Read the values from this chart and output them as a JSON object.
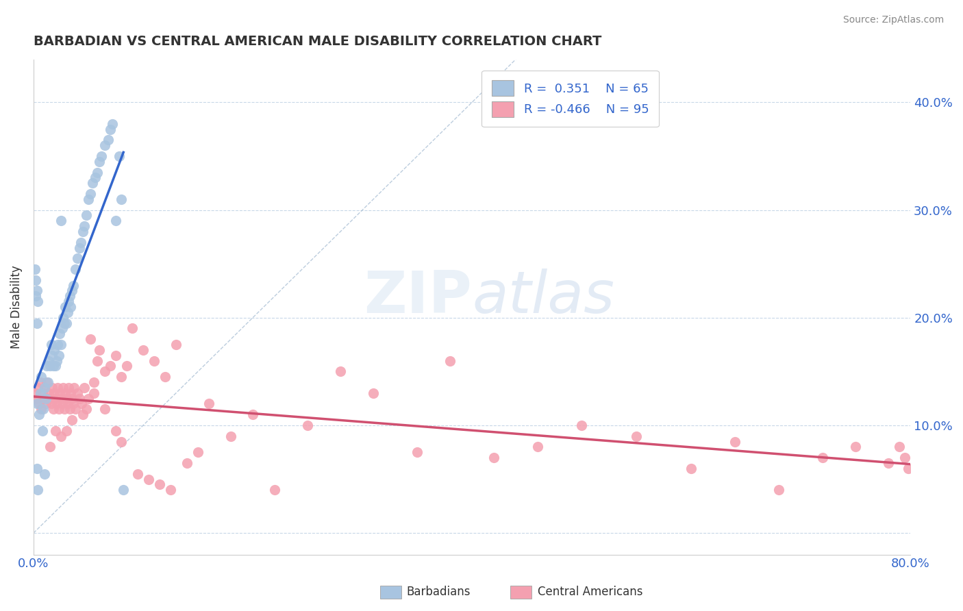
{
  "title": "BARBADIAN VS CENTRAL AMERICAN MALE DISABILITY CORRELATION CHART",
  "source": "Source: ZipAtlas.com",
  "ylabel": "Male Disability",
  "xlim": [
    0.0,
    0.8
  ],
  "ylim": [
    -0.02,
    0.44
  ],
  "xticks": [
    0.0,
    0.1,
    0.2,
    0.3,
    0.4,
    0.5,
    0.6,
    0.7,
    0.8
  ],
  "yticks": [
    0.0,
    0.1,
    0.2,
    0.3,
    0.4
  ],
  "barbadian_color": "#a8c4e0",
  "central_american_color": "#f4a0b0",
  "trendline_blue": "#3366cc",
  "trendline_pink": "#d05070",
  "dashed_line_color": "#a0b8d0",
  "barbadians_x": [
    0.003,
    0.005,
    0.006,
    0.007,
    0.008,
    0.009,
    0.01,
    0.011,
    0.012,
    0.013,
    0.014,
    0.015,
    0.016,
    0.017,
    0.018,
    0.019,
    0.02,
    0.021,
    0.022,
    0.023,
    0.024,
    0.025,
    0.026,
    0.027,
    0.028,
    0.029,
    0.03,
    0.031,
    0.032,
    0.033,
    0.034,
    0.035,
    0.036,
    0.038,
    0.04,
    0.042,
    0.043,
    0.045,
    0.046,
    0.048,
    0.05,
    0.052,
    0.054,
    0.056,
    0.058,
    0.06,
    0.062,
    0.065,
    0.068,
    0.07,
    0.072,
    0.075,
    0.078,
    0.08,
    0.082,
    0.003,
    0.004,
    0.003,
    0.002,
    0.002,
    0.001,
    0.01,
    0.025,
    0.003,
    0.004
  ],
  "barbadians_y": [
    0.12,
    0.11,
    0.13,
    0.145,
    0.095,
    0.115,
    0.135,
    0.125,
    0.155,
    0.14,
    0.16,
    0.155,
    0.175,
    0.165,
    0.155,
    0.17,
    0.155,
    0.16,
    0.175,
    0.165,
    0.185,
    0.175,
    0.19,
    0.2,
    0.195,
    0.21,
    0.195,
    0.205,
    0.215,
    0.22,
    0.21,
    0.225,
    0.23,
    0.245,
    0.255,
    0.265,
    0.27,
    0.28,
    0.285,
    0.295,
    0.31,
    0.315,
    0.325,
    0.33,
    0.335,
    0.345,
    0.35,
    0.36,
    0.365,
    0.375,
    0.38,
    0.29,
    0.35,
    0.31,
    0.04,
    0.195,
    0.215,
    0.225,
    0.22,
    0.235,
    0.245,
    0.055,
    0.29,
    0.06,
    0.04
  ],
  "central_americans_x": [
    0.002,
    0.003,
    0.004,
    0.005,
    0.006,
    0.007,
    0.008,
    0.009,
    0.01,
    0.011,
    0.012,
    0.013,
    0.014,
    0.015,
    0.016,
    0.017,
    0.018,
    0.019,
    0.02,
    0.021,
    0.022,
    0.023,
    0.024,
    0.025,
    0.026,
    0.027,
    0.028,
    0.029,
    0.03,
    0.031,
    0.032,
    0.033,
    0.034,
    0.035,
    0.036,
    0.037,
    0.038,
    0.04,
    0.042,
    0.044,
    0.046,
    0.048,
    0.05,
    0.052,
    0.055,
    0.058,
    0.06,
    0.065,
    0.07,
    0.075,
    0.08,
    0.085,
    0.09,
    0.1,
    0.11,
    0.12,
    0.13,
    0.14,
    0.15,
    0.16,
    0.18,
    0.2,
    0.22,
    0.25,
    0.28,
    0.31,
    0.35,
    0.38,
    0.42,
    0.46,
    0.5,
    0.55,
    0.6,
    0.64,
    0.68,
    0.72,
    0.75,
    0.78,
    0.79,
    0.795,
    0.798,
    0.03,
    0.035,
    0.025,
    0.045,
    0.02,
    0.015,
    0.055,
    0.065,
    0.075,
    0.08,
    0.095,
    0.105,
    0.115,
    0.125
  ],
  "central_americans_y": [
    0.13,
    0.125,
    0.135,
    0.12,
    0.14,
    0.115,
    0.13,
    0.125,
    0.135,
    0.12,
    0.14,
    0.125,
    0.13,
    0.125,
    0.12,
    0.135,
    0.115,
    0.13,
    0.125,
    0.12,
    0.135,
    0.115,
    0.13,
    0.125,
    0.12,
    0.135,
    0.115,
    0.13,
    0.125,
    0.12,
    0.135,
    0.115,
    0.13,
    0.125,
    0.12,
    0.135,
    0.115,
    0.13,
    0.125,
    0.12,
    0.135,
    0.115,
    0.125,
    0.18,
    0.13,
    0.16,
    0.17,
    0.15,
    0.155,
    0.165,
    0.145,
    0.155,
    0.19,
    0.17,
    0.16,
    0.145,
    0.175,
    0.065,
    0.075,
    0.12,
    0.09,
    0.11,
    0.04,
    0.1,
    0.15,
    0.13,
    0.075,
    0.16,
    0.07,
    0.08,
    0.1,
    0.09,
    0.06,
    0.085,
    0.04,
    0.07,
    0.08,
    0.065,
    0.08,
    0.07,
    0.06,
    0.095,
    0.105,
    0.09,
    0.11,
    0.095,
    0.08,
    0.14,
    0.115,
    0.095,
    0.085,
    0.055,
    0.05,
    0.045,
    0.04
  ]
}
